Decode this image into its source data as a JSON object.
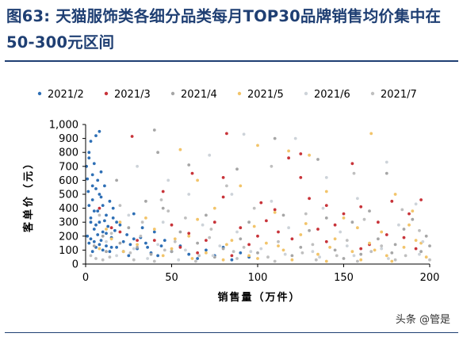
{
  "figure": {
    "title": "图63: 天猫服饰类各细分品类每月TOP30品牌销售均价集中在50-300元区间",
    "source_watermark": "头条 @管是"
  },
  "chart_data": {
    "type": "scatter",
    "xlabel": "销售量（万件）",
    "ylabel": "客单价（元）",
    "xlim": [
      0,
      200
    ],
    "ylim": [
      0,
      1000
    ],
    "x_ticks": [
      "0",
      "50",
      "100",
      "150",
      "200"
    ],
    "y_ticks": [
      "0",
      "100",
      "200",
      "300",
      "400",
      "500",
      "600",
      "700",
      "800",
      "900",
      "1,000"
    ],
    "grid": false,
    "legend_position": "top",
    "series": [
      {
        "name": "2021/2",
        "color": "#2e6fb5",
        "points": [
          [
            0.5,
            700
          ],
          [
            1,
            610
          ],
          [
            1.5,
            520
          ],
          [
            2,
            760
          ],
          [
            2,
            420
          ],
          [
            3,
            880
          ],
          [
            3,
            330
          ],
          [
            4,
            640
          ],
          [
            4,
            460
          ],
          [
            5,
            720
          ],
          [
            5,
            250
          ],
          [
            6,
            920
          ],
          [
            6,
            540
          ],
          [
            7,
            380
          ],
          [
            7,
            600
          ],
          [
            8,
            300
          ],
          [
            8,
            950
          ],
          [
            9,
            480
          ],
          [
            9,
            660
          ],
          [
            10,
            230
          ],
          [
            10,
            420
          ],
          [
            11,
            560
          ],
          [
            12,
            350
          ],
          [
            13,
            270
          ],
          [
            14,
            450
          ],
          [
            15,
            190
          ],
          [
            16,
            330
          ],
          [
            17,
            240
          ],
          [
            18,
            120
          ],
          [
            20,
            280
          ],
          [
            22,
            160
          ],
          [
            24,
            210
          ],
          [
            26,
            140
          ],
          [
            28,
            360
          ],
          [
            30,
            110
          ],
          [
            32,
            190
          ],
          [
            35,
            150
          ],
          [
            38,
            80
          ],
          [
            40,
            230
          ],
          [
            44,
            130
          ],
          [
            1,
            200
          ],
          [
            2,
            150
          ],
          [
            3,
            180
          ],
          [
            4,
            90
          ],
          [
            5,
            160
          ],
          [
            6,
            120
          ],
          [
            7,
            210
          ],
          [
            8,
            140
          ],
          [
            9,
            170
          ],
          [
            10,
            100
          ],
          [
            12,
            130
          ],
          [
            14,
            90
          ],
          [
            3,
            300
          ],
          [
            5,
            380
          ],
          [
            6,
            280
          ],
          [
            12,
            220
          ],
          [
            15,
            120
          ],
          [
            18,
            300
          ],
          [
            22,
            90
          ],
          [
            25,
            60
          ],
          [
            28,
            180
          ],
          [
            33,
            260
          ],
          [
            36,
            120
          ],
          [
            42,
            60
          ],
          [
            46,
            170
          ],
          [
            50,
            90
          ],
          [
            55,
            130
          ],
          [
            60,
            70
          ],
          [
            65,
            40
          ],
          [
            70,
            100
          ],
          [
            75,
            60
          ],
          [
            80,
            120
          ],
          [
            85,
            30
          ],
          [
            90,
            80
          ],
          [
            95,
            50
          ],
          [
            2,
            800
          ],
          [
            4,
            560
          ],
          [
            8,
            500
          ],
          [
            11,
            310
          ],
          [
            16,
            400
          ]
        ]
      },
      {
        "name": "2021/3",
        "color": "#c8343a",
        "points": [
          [
            27,
            915
          ],
          [
            82,
            935
          ],
          [
            118,
            760
          ],
          [
            125,
            790
          ],
          [
            155,
            720
          ],
          [
            62,
            650
          ],
          [
            45,
            520
          ],
          [
            80,
            480
          ],
          [
            102,
            440
          ],
          [
            110,
            390
          ],
          [
            130,
            470
          ],
          [
            140,
            420
          ],
          [
            150,
            360
          ],
          [
            160,
            410
          ],
          [
            170,
            300
          ],
          [
            178,
            450
          ],
          [
            188,
            360
          ],
          [
            195,
            460
          ],
          [
            75,
            300
          ],
          [
            90,
            260
          ],
          [
            60,
            220
          ],
          [
            100,
            200
          ],
          [
            120,
            180
          ],
          [
            140,
            160
          ],
          [
            165,
            140
          ],
          [
            185,
            190
          ],
          [
            40,
            170
          ],
          [
            55,
            120
          ],
          [
            65,
            80
          ],
          [
            85,
            60
          ],
          [
            95,
            140
          ],
          [
            112,
            230
          ],
          [
            135,
            250
          ],
          [
            145,
            280
          ],
          [
            175,
            210
          ],
          [
            192,
            110
          ],
          [
            20,
            230
          ],
          [
            30,
            170
          ],
          [
            50,
            280
          ],
          [
            70,
            170
          ],
          [
            8,
            400
          ],
          [
            15,
            260
          ],
          [
            125,
            620
          ],
          [
            80,
            620
          ],
          [
            160,
            110
          ],
          [
            105,
            310
          ]
        ]
      },
      {
        "name": "2021/4",
        "color": "#a6a6a6",
        "points": [
          [
            40,
            960
          ],
          [
            42,
            800
          ],
          [
            60,
            710
          ],
          [
            88,
            680
          ],
          [
            110,
            900
          ],
          [
            135,
            750
          ],
          [
            175,
            650
          ],
          [
            18,
            600
          ],
          [
            35,
            450
          ],
          [
            45,
            400
          ],
          [
            70,
            350
          ],
          [
            95,
            300
          ],
          [
            115,
            350
          ],
          [
            130,
            240
          ],
          [
            155,
            300
          ],
          [
            170,
            180
          ],
          [
            185,
            250
          ],
          [
            198,
            200
          ],
          [
            10,
            200
          ],
          [
            20,
            150
          ],
          [
            30,
            120
          ],
          [
            50,
            90
          ],
          [
            65,
            150
          ],
          [
            80,
            110
          ],
          [
            100,
            80
          ],
          [
            125,
            120
          ],
          [
            145,
            100
          ],
          [
            160,
            70
          ],
          [
            180,
            140
          ],
          [
            195,
            90
          ],
          [
            5,
            130
          ],
          [
            25,
            260
          ],
          [
            55,
            230
          ],
          [
            90,
            180
          ],
          [
            140,
            330
          ],
          [
            165,
            380
          ],
          [
            190,
            320
          ],
          [
            12,
            90
          ],
          [
            38,
            70
          ],
          [
            75,
            50
          ],
          [
            120,
            60
          ],
          [
            150,
            40
          ],
          [
            178,
            80
          ],
          [
            200,
            130
          ]
        ]
      },
      {
        "name": "2021/5",
        "color": "#f2c46a",
        "points": [
          [
            55,
            820
          ],
          [
            100,
            850
          ],
          [
            118,
            810
          ],
          [
            130,
            780
          ],
          [
            166,
            935
          ],
          [
            65,
            600
          ],
          [
            90,
            560
          ],
          [
            140,
            520
          ],
          [
            180,
            500
          ],
          [
            75,
            400
          ],
          [
            110,
            370
          ],
          [
            150,
            330
          ],
          [
            190,
            380
          ],
          [
            20,
            300
          ],
          [
            40,
            250
          ],
          [
            60,
            200
          ],
          [
            85,
            170
          ],
          [
            105,
            150
          ],
          [
            125,
            210
          ],
          [
            145,
            180
          ],
          [
            165,
            150
          ],
          [
            185,
            120
          ],
          [
            15,
            180
          ],
          [
            30,
            140
          ],
          [
            50,
            110
          ],
          [
            70,
            80
          ],
          [
            95,
            60
          ],
          [
            115,
            100
          ],
          [
            135,
            70
          ],
          [
            155,
            90
          ],
          [
            175,
            60
          ],
          [
            195,
            150
          ],
          [
            8,
            110
          ],
          [
            22,
            90
          ],
          [
            45,
            60
          ],
          [
            62,
            40
          ],
          [
            80,
            30
          ],
          [
            100,
            40
          ],
          [
            120,
            30
          ],
          [
            140,
            20
          ],
          [
            160,
            30
          ],
          [
            178,
            20
          ],
          [
            198,
            50
          ],
          [
            35,
            330
          ],
          [
            65,
            320
          ],
          [
            98,
            270
          ],
          [
            128,
            290
          ],
          [
            158,
            260
          ],
          [
            172,
            230
          ],
          [
            188,
            280
          ],
          [
            12,
            250
          ],
          [
            52,
            180
          ],
          [
            82,
            140
          ],
          [
            112,
            130
          ],
          [
            142,
            120
          ],
          [
            168,
            100
          ],
          [
            192,
            170
          ]
        ]
      },
      {
        "name": "2021/6",
        "color": "#cdd3d9",
        "points": [
          [
            72,
            780
          ],
          [
            92,
            930
          ],
          [
            122,
            900
          ],
          [
            175,
            730
          ],
          [
            30,
            700
          ],
          [
            48,
            600
          ],
          [
            85,
            500
          ],
          [
            108,
            450
          ],
          [
            138,
            400
          ],
          [
            158,
            470
          ],
          [
            192,
            430
          ],
          [
            25,
            350
          ],
          [
            45,
            300
          ],
          [
            68,
            280
          ],
          [
            88,
            230
          ],
          [
            118,
            260
          ],
          [
            148,
            230
          ],
          [
            182,
            280
          ],
          [
            12,
            160
          ],
          [
            28,
            110
          ],
          [
            42,
            140
          ],
          [
            58,
            100
          ],
          [
            78,
            130
          ],
          [
            102,
            110
          ],
          [
            132,
            90
          ],
          [
            152,
            130
          ],
          [
            172,
            110
          ],
          [
            196,
            160
          ],
          [
            18,
            60
          ],
          [
            36,
            40
          ],
          [
            54,
            30
          ],
          [
            74,
            60
          ],
          [
            96,
            90
          ],
          [
            116,
            70
          ],
          [
            136,
            50
          ],
          [
            156,
            60
          ],
          [
            176,
            40
          ],
          [
            194,
            70
          ],
          [
            60,
            500
          ],
          [
            140,
            620
          ]
        ]
      },
      {
        "name": "2021/7",
        "color": "#bfbfbf",
        "points": [
          [
            8,
            350
          ],
          [
            20,
            420
          ],
          [
            33,
            300
          ],
          [
            48,
            380
          ],
          [
            58,
            330
          ],
          [
            73,
            250
          ],
          [
            98,
            400
          ],
          [
            128,
            360
          ],
          [
            162,
            320
          ],
          [
            184,
            390
          ],
          [
            15,
            220
          ],
          [
            32,
            200
          ],
          [
            52,
            160
          ],
          [
            72,
            190
          ],
          [
            92,
            120
          ],
          [
            112,
            160
          ],
          [
            132,
            140
          ],
          [
            152,
            170
          ],
          [
            172,
            130
          ],
          [
            194,
            240
          ],
          [
            26,
            80
          ],
          [
            46,
            100
          ],
          [
            66,
            60
          ],
          [
            86,
            90
          ],
          [
            106,
            50
          ],
          [
            126,
            80
          ],
          [
            146,
            60
          ],
          [
            166,
            90
          ],
          [
            186,
            60
          ],
          [
            3,
            60
          ],
          [
            6,
            40
          ],
          [
            10,
            30
          ],
          [
            14,
            50
          ],
          [
            28,
            30
          ],
          [
            40,
            20
          ],
          [
            64,
            20
          ],
          [
            88,
            40
          ],
          [
            110,
            20
          ],
          [
            134,
            30
          ],
          [
            158,
            20
          ],
          [
            180,
            30
          ],
          [
            200,
            30
          ],
          [
            108,
            700
          ],
          [
            156,
            650
          ],
          [
            44,
            460
          ],
          [
            82,
            560
          ]
        ]
      }
    ]
  }
}
